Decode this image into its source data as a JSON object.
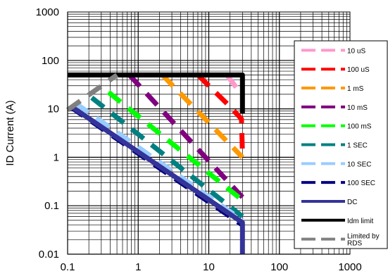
{
  "chart_data": {
    "type": "line",
    "title": "",
    "xlabel": "",
    "ylabel": "ID Current (A)",
    "xscale": "log",
    "yscale": "log",
    "xlim": [
      0.1,
      1000
    ],
    "ylim": [
      0.01,
      1000
    ],
    "grid": "minor+major",
    "x_ticks": [
      "0.1",
      "1",
      "10",
      "100",
      "1000"
    ],
    "y_ticks": [
      "0.01",
      "0.1",
      "1",
      "10",
      "100",
      "1000"
    ],
    "legend_position": "right",
    "series": [
      {
        "name": "10 uS",
        "color": "#ff99cc",
        "dash": "dashed",
        "x": [
          18,
          29
        ],
        "y": [
          50,
          20
        ]
      },
      {
        "name": "100 uS",
        "color": "#ff0000",
        "dash": "dashed",
        "x": [
          7,
          19,
          29,
          30
        ],
        "y": [
          50,
          12,
          6.2,
          1.2
        ]
      },
      {
        "name": "1 mS",
        "color": "#ff9900",
        "dash": "dashed",
        "x": [
          2.2,
          30
        ],
        "y": [
          50,
          1.0
        ]
      },
      {
        "name": "10 mS",
        "color": "#800080",
        "dash": "dashed",
        "x": [
          0.75,
          30
        ],
        "y": [
          50,
          0.15
        ]
      },
      {
        "name": "100 mS",
        "color": "#00ff00",
        "dash": "dashed",
        "x": [
          0.38,
          30
        ],
        "y": [
          22,
          0.13
        ]
      },
      {
        "name": "1 SEC",
        "color": "#008080",
        "dash": "dashed",
        "x": [
          0.22,
          30
        ],
        "y": [
          17,
          0.06
        ]
      },
      {
        "name": "10 SEC",
        "color": "#99ccff",
        "dash": "dashed",
        "x": [
          0.13,
          30
        ],
        "y": [
          13,
          0.05
        ]
      },
      {
        "name": "100 SEC",
        "color": "#000080",
        "dash": "dashed",
        "x": [
          0.11,
          30
        ],
        "y": [
          11,
          0.04
        ]
      },
      {
        "name": "DC",
        "color": "#333399",
        "dash": "solid",
        "x": [
          0.12,
          30,
          30
        ],
        "y": [
          10.5,
          0.045,
          0.01
        ]
      },
      {
        "name": "Idm limit",
        "color": "#000000",
        "dash": "solid",
        "x": [
          0.1,
          30,
          30
        ],
        "y": [
          50,
          50,
          8
        ]
      },
      {
        "name": "Limited by RDS",
        "color": "#808080",
        "dash": "dashed",
        "x": [
          0.1,
          0.5
        ],
        "y": [
          9.5,
          50
        ]
      }
    ]
  }
}
